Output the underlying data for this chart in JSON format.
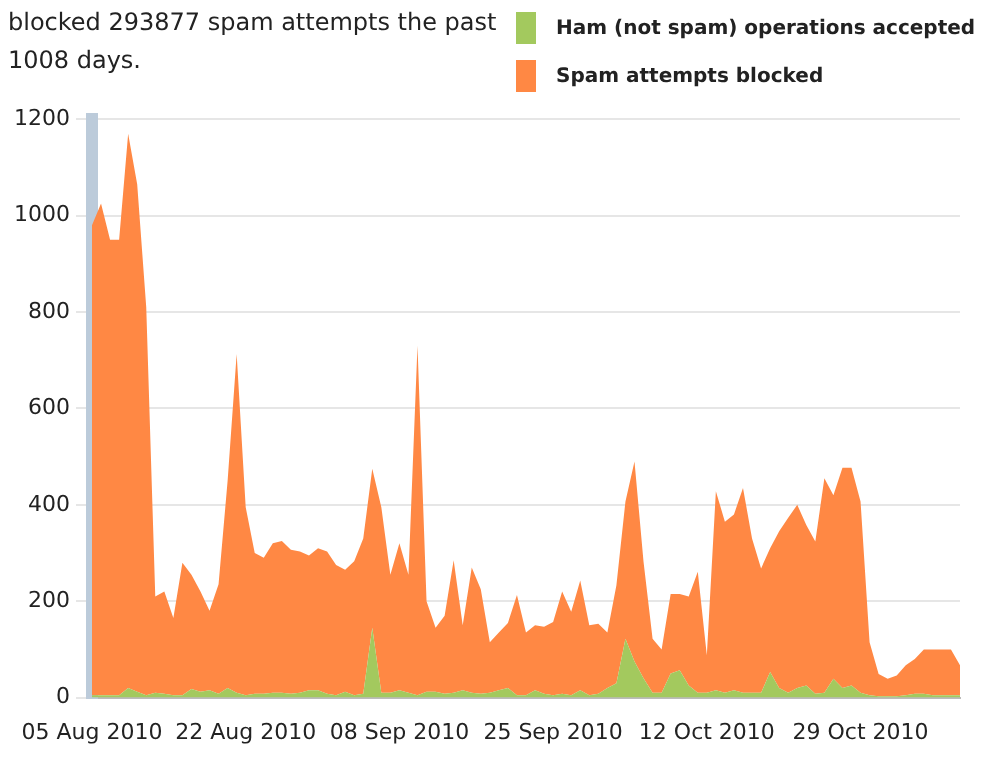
{
  "chart_data": {
    "type": "area",
    "title": "blocked 293877 spam attempts the past 1008 days.",
    "x": [
      "2010-08-05",
      "2010-08-06",
      "2010-08-07",
      "2010-08-08",
      "2010-08-09",
      "2010-08-10",
      "2010-08-11",
      "2010-08-12",
      "2010-08-13",
      "2010-08-14",
      "2010-08-15",
      "2010-08-16",
      "2010-08-17",
      "2010-08-18",
      "2010-08-19",
      "2010-08-20",
      "2010-08-21",
      "2010-08-22",
      "2010-08-23",
      "2010-08-24",
      "2010-08-25",
      "2010-08-26",
      "2010-08-27",
      "2010-08-28",
      "2010-08-29",
      "2010-08-30",
      "2010-08-31",
      "2010-09-01",
      "2010-09-02",
      "2010-09-03",
      "2010-09-04",
      "2010-09-05",
      "2010-09-06",
      "2010-09-07",
      "2010-09-08",
      "2010-09-09",
      "2010-09-10",
      "2010-09-11",
      "2010-09-12",
      "2010-09-13",
      "2010-09-14",
      "2010-09-15",
      "2010-09-16",
      "2010-09-17",
      "2010-09-18",
      "2010-09-19",
      "2010-09-20",
      "2010-09-21",
      "2010-09-22",
      "2010-09-23",
      "2010-09-24",
      "2010-09-25",
      "2010-09-26",
      "2010-09-27",
      "2010-09-28",
      "2010-09-29",
      "2010-09-30",
      "2010-10-01",
      "2010-10-02",
      "2010-10-03",
      "2010-10-04",
      "2010-10-05",
      "2010-10-06",
      "2010-10-07",
      "2010-10-08",
      "2010-10-09",
      "2010-10-10",
      "2010-10-11",
      "2010-10-12",
      "2010-10-13",
      "2010-10-14",
      "2010-10-15",
      "2010-10-16",
      "2010-10-17",
      "2010-10-18",
      "2010-10-19",
      "2010-10-20",
      "2010-10-21",
      "2010-10-22",
      "2010-10-23",
      "2010-10-24",
      "2010-10-25",
      "2010-10-26",
      "2010-10-27",
      "2010-10-28",
      "2010-10-29",
      "2010-10-30",
      "2010-10-31",
      "2010-11-01",
      "2010-11-02",
      "2010-11-03",
      "2010-11-04",
      "2010-11-05",
      "2010-11-06",
      "2010-11-07",
      "2010-11-08",
      "2010-11-09"
    ],
    "series": [
      {
        "name": "Ham (not spam) operations accepted",
        "color": "#a3c95e",
        "values": [
          5,
          5,
          5,
          5,
          20,
          12,
          5,
          10,
          8,
          5,
          5,
          18,
          12,
          15,
          8,
          20,
          10,
          5,
          8,
          8,
          10,
          10,
          8,
          10,
          15,
          15,
          8,
          5,
          12,
          5,
          8,
          145,
          10,
          10,
          15,
          10,
          5,
          12,
          12,
          8,
          10,
          15,
          10,
          8,
          10,
          15,
          20,
          5,
          5,
          15,
          8,
          5,
          8,
          5,
          15,
          5,
          8,
          20,
          30,
          122,
          75,
          40,
          10,
          10,
          50,
          57,
          25,
          10,
          10,
          15,
          10,
          15,
          10,
          10,
          10,
          53,
          20,
          10,
          20,
          25,
          8,
          10,
          39,
          20,
          25,
          10,
          5,
          3,
          3,
          3,
          5,
          8,
          8,
          5,
          5,
          5,
          5
        ]
      },
      {
        "name": "Spam attempts blocked",
        "color": "#ff8844",
        "values": [
          975,
          1020,
          945,
          945,
          1150,
          1053,
          805,
          200,
          212,
          160,
          275,
          237,
          208,
          165,
          227,
          430,
          703,
          390,
          292,
          282,
          310,
          315,
          299,
          293,
          280,
          295,
          295,
          270,
          253,
          278,
          322,
          330,
          385,
          245,
          305,
          245,
          725,
          188,
          133,
          162,
          275,
          135,
          260,
          217,
          105,
          120,
          135,
          208,
          130,
          135,
          139,
          152,
          212,
          173,
          228,
          145,
          145,
          115,
          203,
          285,
          415,
          242,
          112,
          90,
          165,
          158,
          185,
          251,
          78,
          413,
          355,
          365,
          425,
          320,
          258,
          257,
          325,
          363,
          380,
          333,
          316,
          445,
          381,
          457,
          452,
          397,
          110,
          46,
          36,
          43,
          62,
          72,
          92,
          95,
          95,
          95,
          62
        ]
      }
    ],
    "stacked": true,
    "marker": "none",
    "grid": "y",
    "legend": "top right",
    "xlim": [
      "2010-08-05",
      "2010-11-09"
    ],
    "xticks": [
      {
        "value": "2010-08-05",
        "label": "05 Aug 2010"
      },
      {
        "value": "2010-08-22",
        "label": "22 Aug 2010"
      },
      {
        "value": "2010-09-08",
        "label": "08 Sep 2010"
      },
      {
        "value": "2010-09-25",
        "label": "25 Sep 2010"
      },
      {
        "value": "2010-10-12",
        "label": "12 Oct 2010"
      },
      {
        "value": "2010-10-29",
        "label": "29 Oct 2010"
      }
    ],
    "ylim": [
      0,
      1200
    ],
    "yticks": [
      0,
      200,
      400,
      600,
      800,
      1000,
      1200
    ]
  }
}
